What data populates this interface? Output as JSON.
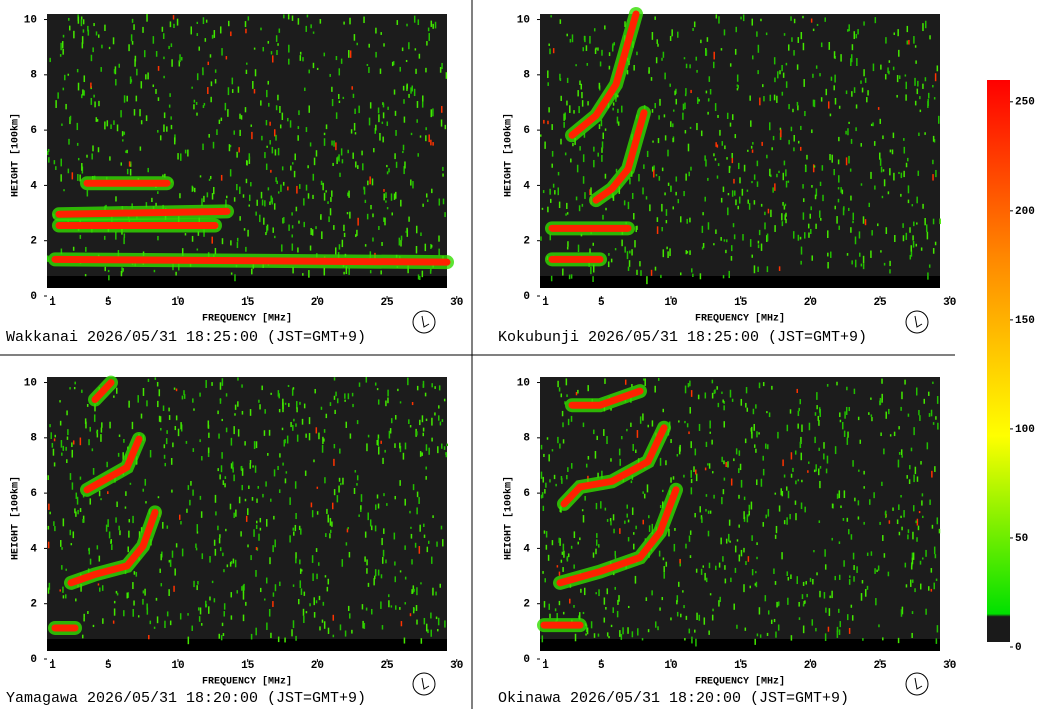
{
  "chart_data": [
    {
      "type": "ionogram",
      "title": "Wakkanai 2026/05/31 18:25:00 (JST=GMT+9)",
      "xlabel": "FREQUENCY [MHz]",
      "ylabel": "HEIGHT [100km]",
      "xlim": [
        0.6,
        29.3
      ],
      "ylim": [
        0,
        10.2
      ],
      "xticks": [
        1,
        5,
        10,
        15,
        20,
        25,
        30
      ],
      "yticks": [
        0,
        2,
        4,
        6,
        8,
        10
      ]
    },
    {
      "type": "ionogram",
      "title": "Kokubunji 2026/05/31 18:25:00 (JST=GMT+9)",
      "xlabel": "FREQUENCY [MHz]",
      "ylabel": "HEIGHT [100km]",
      "xlim": [
        0.6,
        29.3
      ],
      "ylim": [
        0,
        10.2
      ],
      "xticks": [
        1,
        5,
        10,
        15,
        20,
        25,
        30
      ],
      "yticks": [
        0,
        2,
        4,
        6,
        8,
        10
      ]
    },
    {
      "type": "ionogram",
      "title": "Yamagawa 2026/05/31 18:20:00 (JST=GMT+9)",
      "xlabel": "FREQUENCY [MHz]",
      "ylabel": "HEIGHT [100km]",
      "xlim": [
        0.6,
        29.3
      ],
      "ylim": [
        0,
        10.2
      ],
      "xticks": [
        1,
        5,
        10,
        15,
        20,
        25,
        30
      ],
      "yticks": [
        0,
        2,
        4,
        6,
        8,
        10
      ]
    },
    {
      "type": "ionogram",
      "title": "Okinawa 2026/05/31 18:20:00 (JST=GMT+9)",
      "xlabel": "FREQUENCY [MHz]",
      "ylabel": "HEIGHT [100km]",
      "xlim": [
        0.6,
        29.3
      ],
      "ylim": [
        0,
        10.2
      ],
      "xticks": [
        1,
        5,
        10,
        15,
        20,
        25,
        30
      ],
      "yticks": [
        0,
        2,
        4,
        6,
        8,
        10
      ]
    },
    {
      "type": "colorbar",
      "ylim": [
        0,
        260
      ],
      "yticks": [
        0,
        50,
        100,
        150,
        200,
        250
      ],
      "colors": [
        "#1a1a1a",
        "#00e000",
        "#ffff00",
        "#ff8800",
        "#ff0000"
      ]
    }
  ]
}
